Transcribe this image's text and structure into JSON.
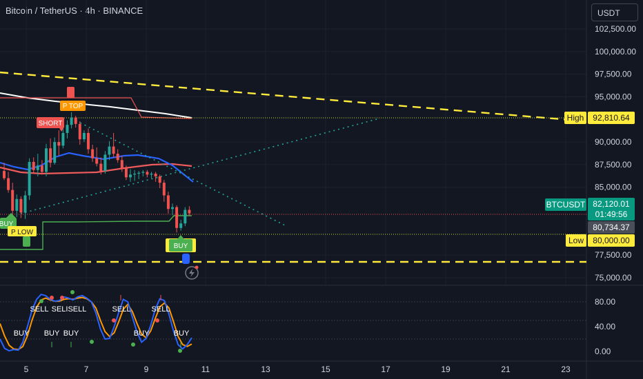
{
  "header": {
    "title": "Bitcoin / TetherUS · 4h · BINANCE",
    "currency": "USDT"
  },
  "price_axis": {
    "ticks": [
      "102,500.00",
      "100,000.00",
      "97,500.00",
      "95,000.00",
      "90,000.00",
      "87,500.00",
      "85,000.00",
      "77,500.00",
      "75,000.00"
    ],
    "tick_values": [
      102500,
      100000,
      97500,
      95000,
      90000,
      87500,
      85000,
      77500,
      75000
    ]
  },
  "oscillator_axis": {
    "ticks": [
      "80.00",
      "40.00",
      "0.00"
    ],
    "tick_values": [
      80,
      40,
      0
    ]
  },
  "time_axis": {
    "ticks": [
      "5",
      "7",
      "9",
      "11",
      "13",
      "15",
      "17",
      "19",
      "21",
      "23"
    ]
  },
  "labels": {
    "high": {
      "tag": "High",
      "value": "92,810.64",
      "price": 92810.64
    },
    "low": {
      "tag": "Low",
      "value": "80,000.00",
      "price": 80000
    },
    "symbol": {
      "tag": "BTCUSDT",
      "value": "82,120.01",
      "countdown": "01:49:56",
      "price": 82120.01
    },
    "last": {
      "value": "80,734.37",
      "price": 80734.37
    }
  },
  "signals": {
    "p_top": "P TOP",
    "p_low": "P LOW",
    "short": "SHORT",
    "buy_main_left": "BUY",
    "buy_main_right": "BUY"
  },
  "oscillator_signals": {
    "sell": [
      "SELL",
      "SELISELL",
      "SELL",
      "SELL"
    ],
    "buy": [
      "BUY",
      "BUY",
      "BUY",
      "BUY",
      "BUY"
    ]
  },
  "colors": {
    "background": "#131722",
    "up": "#26a69a",
    "down": "#ef5350",
    "yellow": "#ffeb3b",
    "blue": "#2962ff",
    "orange": "#ff9800",
    "green_line": "#4caf50",
    "white": "#ffffff"
  },
  "chart_data": {
    "type": "candlestick",
    "symbol": "BTCUSDT",
    "interval": "4h",
    "exchange": "BINANCE",
    "ylim": [
      73500,
      104000
    ],
    "x_ticks": [
      "5",
      "7",
      "9",
      "11",
      "13",
      "15",
      "17",
      "19",
      "21",
      "23"
    ],
    "levels": {
      "high": 92810.64,
      "low": 80000.0,
      "last": 80734.37,
      "current": 82120.01
    },
    "candles": [
      {
        "o": 86800,
        "h": 87700,
        "l": 85800,
        "c": 86000
      },
      {
        "o": 86000,
        "h": 86700,
        "l": 84400,
        "c": 84700
      },
      {
        "o": 84700,
        "h": 85500,
        "l": 81400,
        "c": 82400
      },
      {
        "o": 82400,
        "h": 84200,
        "l": 81700,
        "c": 83700
      },
      {
        "o": 83700,
        "h": 84000,
        "l": 81600,
        "c": 82200
      },
      {
        "o": 82200,
        "h": 84600,
        "l": 81500,
        "c": 84100
      },
      {
        "o": 84100,
        "h": 88200,
        "l": 83600,
        "c": 87800
      },
      {
        "o": 87800,
        "h": 88300,
        "l": 86500,
        "c": 86900
      },
      {
        "o": 86900,
        "h": 88700,
        "l": 86200,
        "c": 87400
      },
      {
        "o": 87400,
        "h": 88000,
        "l": 86400,
        "c": 86700
      },
      {
        "o": 86700,
        "h": 89800,
        "l": 86200,
        "c": 89300
      },
      {
        "o": 89300,
        "h": 90400,
        "l": 87200,
        "c": 87700
      },
      {
        "o": 87700,
        "h": 90500,
        "l": 87500,
        "c": 90000
      },
      {
        "o": 90000,
        "h": 91300,
        "l": 88500,
        "c": 89600
      },
      {
        "o": 89600,
        "h": 91600,
        "l": 89300,
        "c": 91000
      },
      {
        "o": 91000,
        "h": 92400,
        "l": 90400,
        "c": 91900
      },
      {
        "o": 91900,
        "h": 93300,
        "l": 91500,
        "c": 92700
      },
      {
        "o": 92700,
        "h": 92900,
        "l": 91600,
        "c": 92000
      },
      {
        "o": 92000,
        "h": 92300,
        "l": 89700,
        "c": 90300
      },
      {
        "o": 90300,
        "h": 91300,
        "l": 90000,
        "c": 91000
      },
      {
        "o": 91000,
        "h": 91500,
        "l": 88700,
        "c": 89200
      },
      {
        "o": 89200,
        "h": 89700,
        "l": 87800,
        "c": 88200
      },
      {
        "o": 88200,
        "h": 89400,
        "l": 87300,
        "c": 87600
      },
      {
        "o": 87600,
        "h": 88300,
        "l": 86400,
        "c": 86800
      },
      {
        "o": 86800,
        "h": 89000,
        "l": 86500,
        "c": 88600
      },
      {
        "o": 88600,
        "h": 90100,
        "l": 88000,
        "c": 89500
      },
      {
        "o": 89500,
        "h": 91000,
        "l": 88300,
        "c": 88700
      },
      {
        "o": 88700,
        "h": 89200,
        "l": 87700,
        "c": 88000
      },
      {
        "o": 88000,
        "h": 88500,
        "l": 86700,
        "c": 87100
      },
      {
        "o": 87100,
        "h": 87400,
        "l": 85800,
        "c": 86100
      },
      {
        "o": 86100,
        "h": 87000,
        "l": 85600,
        "c": 86400
      },
      {
        "o": 86400,
        "h": 86900,
        "l": 85700,
        "c": 86500
      },
      {
        "o": 86500,
        "h": 86800,
        "l": 85900,
        "c": 86600
      },
      {
        "o": 86600,
        "h": 86900,
        "l": 86200,
        "c": 86700
      },
      {
        "o": 86700,
        "h": 86900,
        "l": 86100,
        "c": 86400
      },
      {
        "o": 86400,
        "h": 86700,
        "l": 86000,
        "c": 86500
      },
      {
        "o": 86500,
        "h": 86700,
        "l": 85600,
        "c": 86200
      },
      {
        "o": 86200,
        "h": 86400,
        "l": 84900,
        "c": 85500
      },
      {
        "o": 85500,
        "h": 85800,
        "l": 83400,
        "c": 84100
      },
      {
        "o": 84100,
        "h": 84500,
        "l": 82100,
        "c": 82600
      },
      {
        "o": 82600,
        "h": 83200,
        "l": 81900,
        "c": 82800
      },
      {
        "o": 82800,
        "h": 83000,
        "l": 80000,
        "c": 80500
      },
      {
        "o": 80500,
        "h": 81400,
        "l": 80200,
        "c": 81000
      },
      {
        "o": 81000,
        "h": 82800,
        "l": 80700,
        "c": 82500
      },
      {
        "o": 82500,
        "h": 82900,
        "l": 81800,
        "c": 82120
      }
    ],
    "oscillator": {
      "ylim": [
        -2,
        100
      ],
      "ticks": [
        80,
        40,
        0
      ],
      "levels": [
        80,
        50,
        20
      ],
      "blue": [
        20,
        5,
        1,
        3,
        2,
        15,
        40,
        66,
        84,
        92,
        90,
        84,
        81,
        82,
        88,
        86,
        83,
        88,
        90,
        86,
        80,
        62,
        36,
        20,
        21,
        40,
        63,
        84,
        80,
        55,
        31,
        15,
        21,
        42,
        68,
        85,
        82,
        60,
        33,
        11,
        4,
        11,
        22
      ],
      "orange": [
        45,
        25,
        10,
        4,
        3,
        8,
        25,
        50,
        71,
        83,
        86,
        83,
        81,
        81,
        84,
        85,
        84,
        86,
        87,
        85,
        80,
        70,
        50,
        32,
        24,
        30,
        48,
        68,
        76,
        64,
        45,
        28,
        22,
        33,
        53,
        72,
        78,
        70,
        48,
        24,
        11,
        8,
        12
      ]
    }
  }
}
